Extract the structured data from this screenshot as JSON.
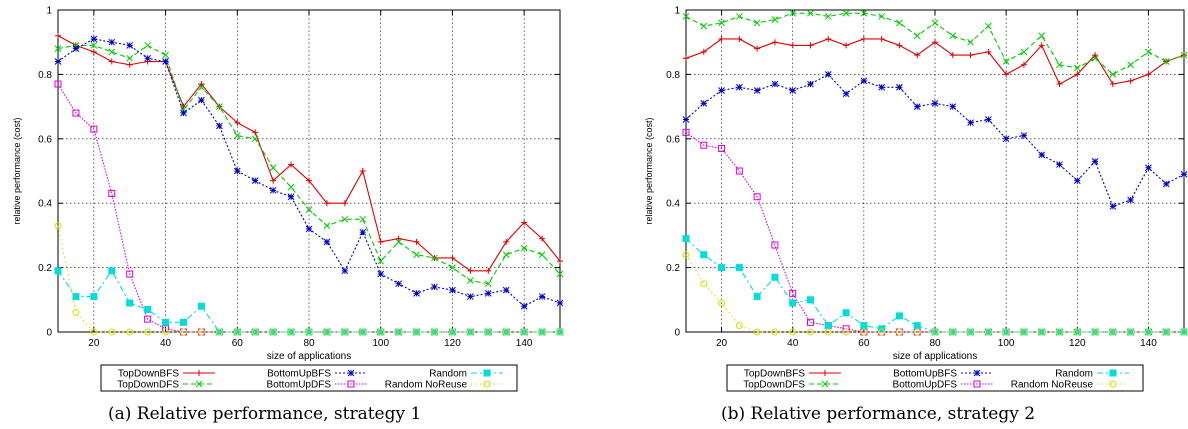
{
  "legend_labels": {
    "TopDownBFS": "TopDownBFS",
    "TopDownDFS": "TopDownDFS",
    "BottomUpBFS": "BottomUpBFS",
    "BottomUpDFS": "BottomUpDFS",
    "Random": "Random",
    "RandomNoReuse": "Random NoReuse"
  },
  "series_colors": {
    "TopDownBFS": "#e00000",
    "TopDownDFS": "#00cc00",
    "BottomUpBFS": "#0000cc",
    "BottomUpDFS": "#dd00dd",
    "Random": "#00dddd",
    "RandomNoReuse": "#dddd00"
  },
  "chart_data": [
    {
      "type": "line",
      "caption": "(a) Relative performance, strategy 1",
      "xlabel": "size of applications",
      "ylabel": "relative performance (cost)",
      "xlim": [
        10,
        150
      ],
      "ylim": [
        0,
        1
      ],
      "xticks": [
        20,
        40,
        60,
        80,
        100,
        120,
        140
      ],
      "yticks": [
        0,
        0.2,
        0.4,
        0.6,
        0.8,
        1
      ],
      "ytick_labels": [
        "0",
        "0.2",
        "0.4",
        "0.6",
        "0.8",
        "1"
      ],
      "grid": true,
      "legend": "below",
      "x": [
        10,
        15,
        20,
        25,
        30,
        35,
        40,
        45,
        50,
        55,
        60,
        65,
        70,
        75,
        80,
        85,
        90,
        95,
        100,
        105,
        110,
        115,
        120,
        125,
        130,
        135,
        140,
        145,
        150
      ],
      "series": [
        {
          "key": "TopDownBFS",
          "name": "TopDownBFS",
          "style": "solid",
          "marker": "plus",
          "values": [
            0.92,
            0.89,
            0.87,
            0.84,
            0.83,
            0.84,
            0.84,
            0.7,
            0.77,
            0.7,
            0.65,
            0.62,
            0.47,
            0.52,
            0.47,
            0.4,
            0.4,
            0.5,
            0.28,
            0.29,
            0.28,
            0.23,
            0.23,
            0.19,
            0.19,
            0.28,
            0.34,
            0.29,
            0.22
          ]
        },
        {
          "key": "TopDownDFS",
          "name": "TopDownDFS",
          "style": "dashed",
          "marker": "x",
          "values": [
            0.88,
            0.89,
            0.89,
            0.87,
            0.85,
            0.89,
            0.86,
            0.69,
            0.76,
            0.7,
            0.61,
            0.6,
            0.51,
            0.45,
            0.38,
            0.33,
            0.35,
            0.35,
            0.22,
            0.28,
            0.24,
            0.23,
            0.2,
            0.16,
            0.15,
            0.24,
            0.26,
            0.24,
            0.18
          ]
        },
        {
          "key": "BottomUpBFS",
          "name": "BottomUpBFS",
          "style": "dotted",
          "marker": "star",
          "values": [
            0.84,
            0.88,
            0.91,
            0.9,
            0.89,
            0.85,
            0.84,
            0.68,
            0.72,
            0.64,
            0.5,
            0.47,
            0.44,
            0.42,
            0.32,
            0.28,
            0.19,
            0.31,
            0.18,
            0.15,
            0.12,
            0.14,
            0.13,
            0.11,
            0.12,
            0.13,
            0.08,
            0.11,
            0.09
          ]
        },
        {
          "key": "BottomUpDFS",
          "name": "BottomUpDFS",
          "style": "densedot",
          "marker": "square",
          "values": [
            0.77,
            0.68,
            0.63,
            0.43,
            0.18,
            0.04,
            0.01,
            0.0,
            0.0,
            0.0,
            0.0,
            0.0,
            0.0,
            0.0,
            0.0,
            0.0,
            0.0,
            0.0,
            0.0,
            0.0,
            0.0,
            0.0,
            0.0,
            0.0,
            0.0,
            0.0,
            0.0,
            0.0,
            0.0
          ]
        },
        {
          "key": "Random",
          "name": "Random",
          "style": "dashdot",
          "marker": "filledsquare",
          "values": [
            0.19,
            0.11,
            0.11,
            0.19,
            0.09,
            0.07,
            0.03,
            0.03,
            0.08,
            0.0,
            0.0,
            0.0,
            0.0,
            0.0,
            0.0,
            0.0,
            0.0,
            0.0,
            0.0,
            0.0,
            0.0,
            0.0,
            0.0,
            0.0,
            0.0,
            0.0,
            0.0,
            0.0,
            0.0
          ]
        },
        {
          "key": "RandomNoReuse",
          "name": "Random NoReuse",
          "style": "longdot",
          "marker": "circle",
          "values": [
            0.33,
            0.06,
            0.0,
            0.0,
            0.0,
            0.0,
            0.0,
            0.0,
            0.0,
            0.0,
            0.0,
            0.0,
            0.0,
            0.0,
            0.0,
            0.0,
            0.0,
            0.0,
            0.0,
            0.0,
            0.0,
            0.0,
            0.0,
            0.0,
            0.0,
            0.0,
            0.0,
            0.0,
            0.0
          ]
        }
      ]
    },
    {
      "type": "line",
      "caption": "(b) Relative performance, strategy 2",
      "xlabel": "size of applications",
      "ylabel": "relative performance (cost)",
      "xlim": [
        10,
        150
      ],
      "ylim": [
        0,
        1
      ],
      "xticks": [
        20,
        40,
        60,
        80,
        100,
        120,
        140
      ],
      "yticks": [
        0,
        0.2,
        0.4,
        0.6,
        0.8,
        1
      ],
      "ytick_labels": [
        "0",
        "0.2",
        "0.4",
        "0.6",
        "0.8",
        "1"
      ],
      "grid": true,
      "legend": "below",
      "x": [
        10,
        15,
        20,
        25,
        30,
        35,
        40,
        45,
        50,
        55,
        60,
        65,
        70,
        75,
        80,
        85,
        90,
        95,
        100,
        105,
        110,
        115,
        120,
        125,
        130,
        135,
        140,
        145,
        150
      ],
      "series": [
        {
          "key": "TopDownBFS",
          "name": "TopDownBFS",
          "style": "solid",
          "marker": "plus",
          "values": [
            0.85,
            0.87,
            0.91,
            0.91,
            0.88,
            0.9,
            0.89,
            0.89,
            0.91,
            0.89,
            0.91,
            0.91,
            0.89,
            0.86,
            0.9,
            0.86,
            0.86,
            0.87,
            0.8,
            0.83,
            0.89,
            0.77,
            0.8,
            0.86,
            0.77,
            0.78,
            0.8,
            0.84,
            0.86
          ]
        },
        {
          "key": "TopDownDFS",
          "name": "TopDownDFS",
          "style": "dashed",
          "marker": "x",
          "values": [
            0.98,
            0.95,
            0.96,
            0.98,
            0.96,
            0.97,
            0.99,
            0.99,
            0.98,
            0.99,
            0.99,
            0.98,
            0.96,
            0.92,
            0.96,
            0.92,
            0.9,
            0.95,
            0.84,
            0.87,
            0.92,
            0.83,
            0.82,
            0.85,
            0.8,
            0.83,
            0.87,
            0.84,
            0.86
          ]
        },
        {
          "key": "BottomUpBFS",
          "name": "BottomUpBFS",
          "style": "dotted",
          "marker": "star",
          "values": [
            0.66,
            0.71,
            0.75,
            0.76,
            0.75,
            0.77,
            0.75,
            0.77,
            0.8,
            0.74,
            0.78,
            0.76,
            0.76,
            0.7,
            0.71,
            0.7,
            0.65,
            0.66,
            0.6,
            0.61,
            0.55,
            0.52,
            0.47,
            0.53,
            0.39,
            0.41,
            0.51,
            0.46,
            0.49
          ]
        },
        {
          "key": "BottomUpDFS",
          "name": "BottomUpDFS",
          "style": "densedot",
          "marker": "square",
          "values": [
            0.62,
            0.58,
            0.57,
            0.5,
            0.42,
            0.27,
            0.12,
            0.03,
            0.02,
            0.01,
            0.0,
            0.0,
            0.0,
            0.0,
            0.0,
            0.0,
            0.0,
            0.0,
            0.0,
            0.0,
            0.0,
            0.0,
            0.0,
            0.0,
            0.0,
            0.0,
            0.0,
            0.0,
            0.0
          ]
        },
        {
          "key": "Random",
          "name": "Random",
          "style": "dashdot",
          "marker": "filledsquare",
          "values": [
            0.29,
            0.24,
            0.2,
            0.2,
            0.11,
            0.17,
            0.09,
            0.1,
            0.02,
            0.06,
            0.02,
            0.01,
            0.05,
            0.02,
            0.0,
            0.0,
            0.0,
            0.0,
            0.0,
            0.0,
            0.0,
            0.0,
            0.0,
            0.0,
            0.0,
            0.0,
            0.0,
            0.0,
            0.0
          ]
        },
        {
          "key": "RandomNoReuse",
          "name": "Random NoReuse",
          "style": "longdot",
          "marker": "circle",
          "values": [
            0.24,
            0.15,
            0.09,
            0.02,
            0.0,
            0.0,
            0.0,
            0.0,
            0.0,
            0.0,
            0.0,
            0.0,
            0.0,
            0.0,
            0.0,
            0.0,
            0.0,
            0.0,
            0.0,
            0.0,
            0.0,
            0.0,
            0.0,
            0.0,
            0.0,
            0.0,
            0.0,
            0.0,
            0.0
          ]
        }
      ]
    }
  ]
}
